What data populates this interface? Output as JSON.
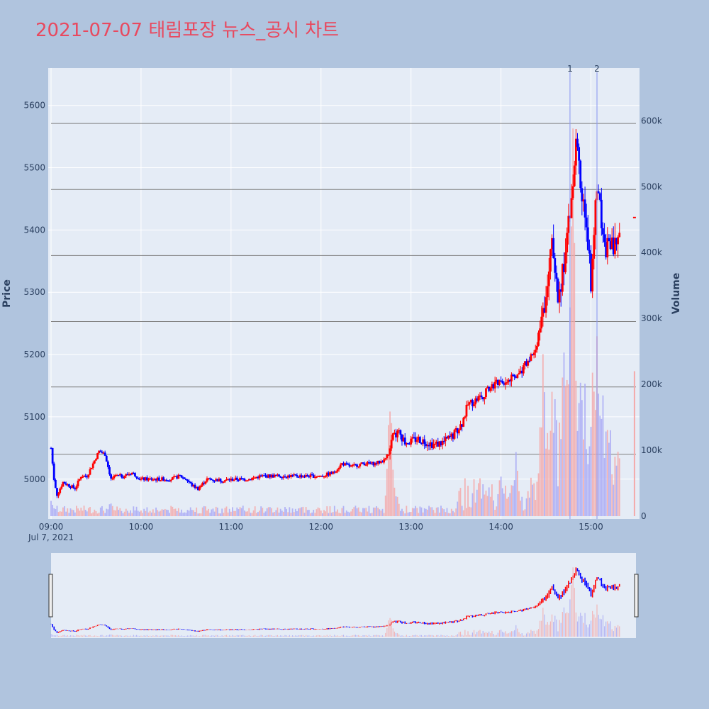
{
  "chart_data": {
    "type": "candlestick",
    "title": "2021-07-07 태림포장 뉴스_공시 차트",
    "title_color": "#e8495f",
    "background_color": "#b0c4de",
    "plot_background": "#e5ecf6",
    "up_color": "#ff0000",
    "down_color": "#0000ff",
    "grid": true,
    "ylabel": "Price",
    "y2label": "Volume",
    "ylim": [
      4936,
      5660
    ],
    "y2lim": [
      0,
      680000
    ],
    "y_ticks": [
      5000,
      5100,
      5200,
      5300,
      5400,
      5500,
      5600
    ],
    "y2_ticks": [
      0,
      100000,
      200000,
      300000,
      400000,
      500000,
      600000
    ],
    "y2_tick_labels": [
      "0",
      "100k",
      "200k",
      "300k",
      "400k",
      "500k",
      "600k"
    ],
    "x_range": [
      "09:00",
      "15:30"
    ],
    "x_ticks": [
      "09:00",
      "10:00",
      "11:00",
      "12:00",
      "13:00",
      "14:00",
      "15:00"
    ],
    "x_date_label": "Jul 7, 2021",
    "horizontal_lines": [
      5040,
      5148,
      5253,
      5359,
      5465,
      5571
    ],
    "news_markers": [
      {
        "label": "1",
        "time": "14:46"
      },
      {
        "label": "2",
        "time": "15:04"
      }
    ],
    "price_path": [
      [
        "09:00",
        5050
      ],
      [
        "09:02",
        5000
      ],
      [
        "09:04",
        4975
      ],
      [
        "09:06",
        4985
      ],
      [
        "09:08",
        4995
      ],
      [
        "09:12",
        4990
      ],
      [
        "09:16",
        4985
      ],
      [
        "09:20",
        5005
      ],
      [
        "09:24",
        5005
      ],
      [
        "09:28",
        5025
      ],
      [
        "09:32",
        5045
      ],
      [
        "09:36",
        5040
      ],
      [
        "09:40",
        5000
      ],
      [
        "09:44",
        5005
      ],
      [
        "09:48",
        5005
      ],
      [
        "09:54",
        5010
      ],
      [
        "10:00",
        5000
      ],
      [
        "10:06",
        5000
      ],
      [
        "10:12",
        5000
      ],
      [
        "10:20",
        5000
      ],
      [
        "10:26",
        5005
      ],
      [
        "10:30",
        5000
      ],
      [
        "10:34",
        4990
      ],
      [
        "10:38",
        4985
      ],
      [
        "10:44",
        5000
      ],
      [
        "10:54",
        4998
      ],
      [
        "11:04",
        5000
      ],
      [
        "11:12",
        5000
      ],
      [
        "11:20",
        5005
      ],
      [
        "11:30",
        5005
      ],
      [
        "11:40",
        5005
      ],
      [
        "11:50",
        5005
      ],
      [
        "12:00",
        5005
      ],
      [
        "12:08",
        5010
      ],
      [
        "12:14",
        5025
      ],
      [
        "12:20",
        5020
      ],
      [
        "12:28",
        5025
      ],
      [
        "12:36",
        5025
      ],
      [
        "12:42",
        5030
      ],
      [
        "12:46",
        5045
      ],
      [
        "12:48",
        5070
      ],
      [
        "12:52",
        5075
      ],
      [
        "12:56",
        5060
      ],
      [
        "13:00",
        5060
      ],
      [
        "13:04",
        5065
      ],
      [
        "13:10",
        5060
      ],
      [
        "13:16",
        5055
      ],
      [
        "13:22",
        5060
      ],
      [
        "13:28",
        5070
      ],
      [
        "13:34",
        5090
      ],
      [
        "13:38",
        5120
      ],
      [
        "13:42",
        5125
      ],
      [
        "13:48",
        5135
      ],
      [
        "13:54",
        5150
      ],
      [
        "14:00",
        5155
      ],
      [
        "14:06",
        5160
      ],
      [
        "14:10",
        5165
      ],
      [
        "14:14",
        5175
      ],
      [
        "14:18",
        5190
      ],
      [
        "14:22",
        5205
      ],
      [
        "14:24",
        5220
      ],
      [
        "14:26",
        5240
      ],
      [
        "14:28",
        5260
      ],
      [
        "14:30",
        5300
      ],
      [
        "14:32",
        5350
      ],
      [
        "14:34",
        5380
      ],
      [
        "14:36",
        5320
      ],
      [
        "14:38",
        5300
      ],
      [
        "14:40",
        5320
      ],
      [
        "14:42",
        5340
      ],
      [
        "14:44",
        5380
      ],
      [
        "14:46",
        5430
      ],
      [
        "14:48",
        5470
      ],
      [
        "14:50",
        5550
      ],
      [
        "14:52",
        5500
      ],
      [
        "14:54",
        5460
      ],
      [
        "14:56",
        5420
      ],
      [
        "14:58",
        5380
      ],
      [
        "15:00",
        5320
      ],
      [
        "15:02",
        5400
      ],
      [
        "15:04",
        5480
      ],
      [
        "15:06",
        5440
      ],
      [
        "15:08",
        5380
      ],
      [
        "15:10",
        5360
      ],
      [
        "15:12",
        5390
      ],
      [
        "15:14",
        5370
      ],
      [
        "15:16",
        5380
      ]
    ],
    "volume_peaks": [
      [
        "09:00",
        30000
      ],
      [
        "09:40",
        25000
      ],
      [
        "12:46",
        200000
      ],
      [
        "12:50",
        40000
      ],
      [
        "13:50",
        45000
      ],
      [
        "14:00",
        70000
      ],
      [
        "14:10",
        110000
      ],
      [
        "14:20",
        60000
      ],
      [
        "14:28",
        270000
      ],
      [
        "14:32",
        110000
      ],
      [
        "14:42",
        280000
      ],
      [
        "14:46",
        350000
      ],
      [
        "14:48",
        650000
      ],
      [
        "14:52",
        270000
      ],
      [
        "14:56",
        200000
      ],
      [
        "15:00",
        160000
      ],
      [
        "15:04",
        310000
      ],
      [
        "15:06",
        220000
      ],
      [
        "15:10",
        130000
      ],
      [
        "15:18",
        130000
      ],
      [
        "15:29",
        220000
      ]
    ]
  }
}
